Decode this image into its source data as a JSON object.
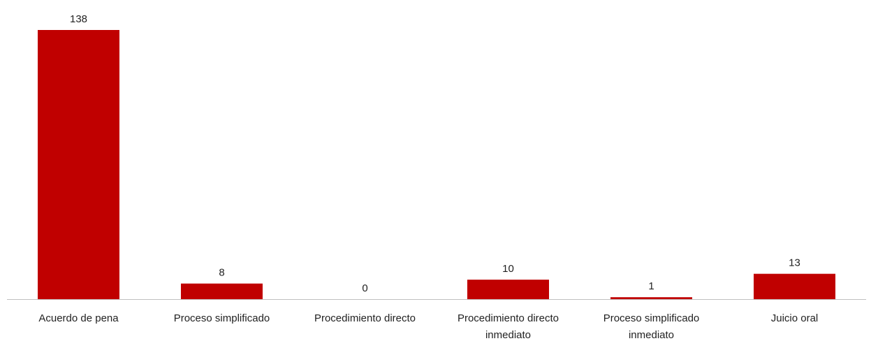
{
  "chart_data": {
    "type": "bar",
    "title": "",
    "xlabel": "",
    "ylabel": "",
    "categories": [
      [
        "Acuerdo de pena"
      ],
      [
        "Proceso simplificado"
      ],
      [
        "Procedimiento directo"
      ],
      [
        "Procedimiento directo",
        "inmediato"
      ],
      [
        "Proceso simplificado",
        "inmediato"
      ],
      [
        "Juicio oral"
      ]
    ],
    "values": [
      138,
      8,
      0,
      10,
      1,
      13
    ],
    "ylim": [
      0,
      138
    ],
    "grid": false,
    "legend": "none",
    "data_labels": true,
    "colors": {
      "bar": "#C00000",
      "axis": "#BFBFBF",
      "text": "#222222"
    }
  }
}
